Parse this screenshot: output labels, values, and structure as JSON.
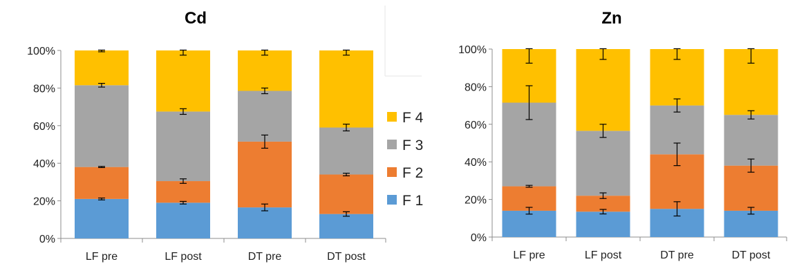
{
  "legend": [
    {
      "name": "F 4",
      "color": "#FFC000"
    },
    {
      "name": "F 3",
      "color": "#A5A5A5"
    },
    {
      "name": "F 2",
      "color": "#ED7D31"
    },
    {
      "name": "F 1",
      "color": "#5B9BD5"
    }
  ],
  "chart_data": [
    {
      "type": "bar",
      "stacked": true,
      "title": "Cd",
      "categories": [
        "LF pre",
        "LF post",
        "DT pre",
        "DT post"
      ],
      "ylim": [
        0,
        100
      ],
      "yticks": [
        "0%",
        "20%",
        "40%",
        "60%",
        "80%",
        "100%"
      ],
      "legend_position": "right",
      "series": [
        {
          "name": "F 1",
          "color": "#5B9BD5",
          "values": [
            21,
            19,
            16.5,
            13
          ],
          "errors": [
            0.5,
            0.7,
            1.8,
            1.2
          ]
        },
        {
          "name": "F 2",
          "color": "#ED7D31",
          "values": [
            17,
            11.5,
            35,
            21
          ],
          "errors": [
            0.3,
            1.2,
            3.5,
            0.7
          ]
        },
        {
          "name": "F 3",
          "color": "#A5A5A5",
          "values": [
            43.5,
            37,
            27,
            25
          ],
          "errors": [
            1.0,
            1.5,
            1.5,
            1.8
          ]
        },
        {
          "name": "F 4",
          "color": "#FFC000",
          "values": [
            18.5,
            32.5,
            21.5,
            41
          ],
          "errors": [
            0.7,
            2.5,
            2.5,
            2.5
          ]
        }
      ]
    },
    {
      "type": "bar",
      "stacked": true,
      "title": "Zn",
      "categories": [
        "LF pre",
        "LF post",
        "DT pre",
        "DT post"
      ],
      "ylim": [
        0,
        100
      ],
      "yticks": [
        "0%",
        "20%",
        "40%",
        "60%",
        "80%",
        "100%"
      ],
      "legend_position": "left",
      "series": [
        {
          "name": "F 1",
          "color": "#5B9BD5",
          "values": [
            14,
            13.5,
            15,
            14
          ],
          "errors": [
            1.8,
            1.2,
            3.8,
            1.8
          ]
        },
        {
          "name": "F 2",
          "color": "#ED7D31",
          "values": [
            13,
            8.5,
            29,
            24
          ],
          "errors": [
            0.5,
            1.5,
            6.0,
            3.5
          ]
        },
        {
          "name": "F 3",
          "color": "#A5A5A5",
          "values": [
            44.5,
            34.5,
            26,
            27
          ],
          "errors": [
            9.0,
            3.5,
            3.5,
            2.2
          ]
        },
        {
          "name": "F 4",
          "color": "#FFC000",
          "values": [
            28.5,
            43.5,
            30,
            35
          ],
          "errors": [
            7.5,
            5.5,
            5.5,
            7.5
          ]
        }
      ]
    }
  ]
}
